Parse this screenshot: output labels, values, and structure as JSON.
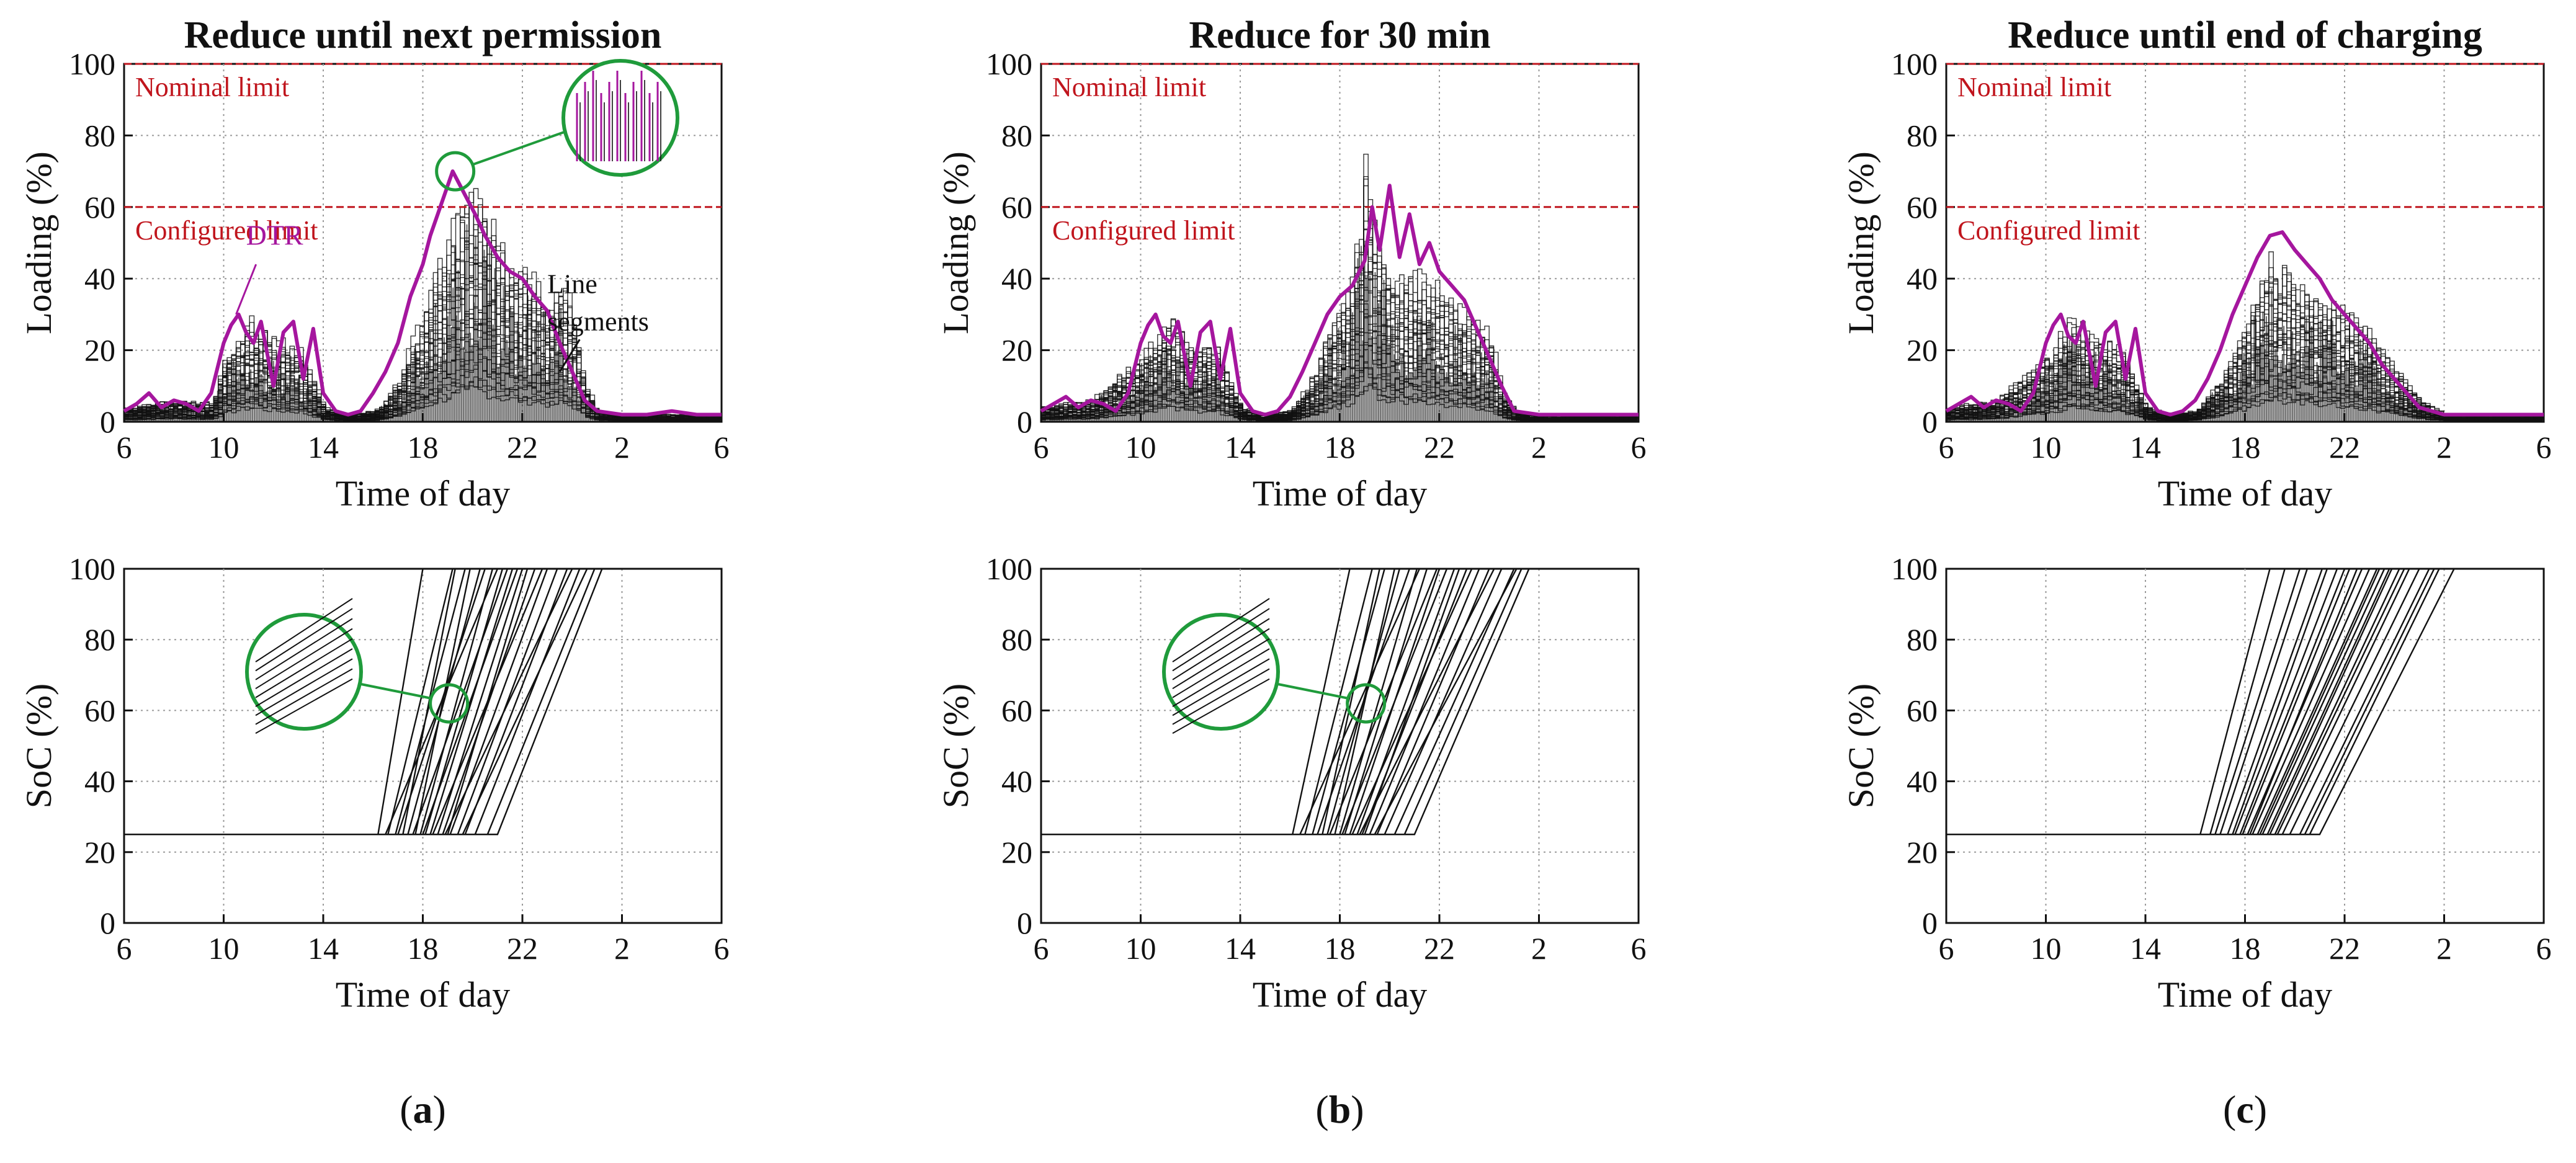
{
  "figure": {
    "panel_labels": [
      "a",
      "b",
      "c"
    ],
    "colors": {
      "dtr": "#a5169e",
      "limit": "#c0151d",
      "segments": "#111111",
      "zoom": "#1f9b3b",
      "grid": "#9a9a9a"
    }
  },
  "chart_data": [
    {
      "id": "a-loading",
      "type": "line",
      "title": "Reduce until next permission",
      "xlabel": "Time of day",
      "ylabel": "Loading (%)",
      "x_ticks": [
        "6",
        "10",
        "14",
        "18",
        "22",
        "2",
        "6"
      ],
      "y_ticks": [
        "0",
        "20",
        "40",
        "60",
        "80",
        "100"
      ],
      "ylim": [
        0,
        100
      ],
      "xlim": [
        6,
        30
      ],
      "reference_lines": [
        {
          "label": "Nominal limit",
          "value": 100
        },
        {
          "label": "Configured limit",
          "value": 60
        }
      ],
      "annotations": {
        "dtr_label": "DTR",
        "segments_label_line1": "Line",
        "segments_label_line2": "segments"
      },
      "series": [
        {
          "name": "DTR",
          "x": [
            6,
            6.5,
            7,
            7.5,
            8,
            8.5,
            9,
            9.5,
            10,
            10.3,
            10.6,
            10.9,
            11.2,
            11.5,
            12,
            12.4,
            12.8,
            13.2,
            13.6,
            14,
            14.5,
            15,
            15.5,
            16,
            16.5,
            17,
            17.5,
            18,
            18.3,
            18.6,
            18.9,
            19.2,
            19.5,
            19.8,
            20.1,
            20.5,
            21,
            21.5,
            22,
            22.5,
            23,
            23.5,
            24,
            24.5,
            25,
            26,
            27,
            28,
            29,
            30
          ],
          "y": [
            3,
            5,
            8,
            4,
            6,
            5,
            3,
            8,
            22,
            27,
            30,
            25,
            22,
            28,
            10,
            25,
            28,
            12,
            26,
            8,
            3,
            2,
            3,
            8,
            14,
            22,
            35,
            44,
            52,
            58,
            64,
            70,
            66,
            62,
            58,
            52,
            46,
            42,
            40,
            35,
            31,
            22,
            14,
            6,
            3,
            2,
            2,
            3,
            2,
            2
          ]
        },
        {
          "name": "Line segments (upper envelope)",
          "x": [
            6,
            8,
            9.5,
            10,
            11,
            12,
            13,
            14,
            15,
            16,
            16.5,
            17,
            17.5,
            18,
            18.5,
            19,
            19.5,
            20,
            20.5,
            21,
            22,
            22.5,
            23,
            23.5,
            24,
            24.5,
            25,
            26,
            28,
            30
          ],
          "y": [
            4,
            6,
            5,
            18,
            28,
            22,
            20,
            4,
            2,
            3,
            6,
            12,
            22,
            30,
            42,
            50,
            60,
            65,
            58,
            48,
            42,
            40,
            34,
            38,
            30,
            10,
            3,
            2,
            2,
            2
          ]
        }
      ]
    },
    {
      "id": "b-loading",
      "type": "line",
      "title": "Reduce for 30 min",
      "xlabel": "Time of day",
      "ylabel": "Loading (%)",
      "x_ticks": [
        "6",
        "10",
        "14",
        "18",
        "22",
        "2",
        "6"
      ],
      "y_ticks": [
        "0",
        "20",
        "40",
        "60",
        "80",
        "100"
      ],
      "ylim": [
        0,
        100
      ],
      "xlim": [
        6,
        30
      ],
      "reference_lines": [
        {
          "label": "Nominal limit",
          "value": 100
        },
        {
          "label": "Configured limit",
          "value": 60
        }
      ],
      "series": [
        {
          "name": "DTR",
          "x": [
            6,
            6.5,
            7,
            7.5,
            8,
            8.5,
            9,
            9.5,
            10,
            10.3,
            10.6,
            10.9,
            11.2,
            11.5,
            12,
            12.4,
            12.8,
            13.2,
            13.6,
            14,
            14.5,
            15,
            15.5,
            16,
            16.5,
            17,
            17.5,
            18,
            18.5,
            19,
            19.3,
            19.6,
            20,
            20.4,
            20.8,
            21.2,
            21.6,
            22,
            22.5,
            23,
            23.5,
            24,
            24.5,
            25,
            26,
            28,
            30
          ],
          "y": [
            3,
            5,
            7,
            4,
            6,
            5,
            3,
            8,
            22,
            27,
            30,
            24,
            22,
            28,
            10,
            25,
            28,
            12,
            26,
            8,
            3,
            2,
            3,
            7,
            14,
            22,
            30,
            35,
            38,
            45,
            60,
            48,
            66,
            46,
            58,
            44,
            50,
            42,
            38,
            34,
            26,
            18,
            10,
            3,
            2,
            2,
            2
          ]
        },
        {
          "name": "Line segments (upper envelope)",
          "x": [
            6,
            8,
            10,
            11,
            12,
            13,
            14,
            15,
            16,
            17,
            17.5,
            18,
            18.5,
            19,
            19.5,
            20,
            21,
            22,
            23,
            24,
            24.5,
            25,
            26,
            30
          ],
          "y": [
            4,
            6,
            18,
            28,
            22,
            20,
            4,
            2,
            3,
            14,
            26,
            32,
            40,
            72,
            48,
            42,
            40,
            36,
            30,
            24,
            8,
            3,
            2,
            2
          ]
        }
      ]
    },
    {
      "id": "c-loading",
      "type": "line",
      "title": "Reduce until end of charging",
      "xlabel": "Time of day",
      "ylabel": "Loading (%)",
      "x_ticks": [
        "6",
        "10",
        "14",
        "18",
        "22",
        "2",
        "6"
      ],
      "y_ticks": [
        "0",
        "20",
        "40",
        "60",
        "80",
        "100"
      ],
      "ylim": [
        0,
        100
      ],
      "xlim": [
        6,
        30
      ],
      "reference_lines": [
        {
          "label": "Nominal limit",
          "value": 100
        },
        {
          "label": "Configured limit",
          "value": 60
        }
      ],
      "series": [
        {
          "name": "DTR",
          "x": [
            6,
            6.5,
            7,
            7.5,
            8,
            8.5,
            9,
            9.5,
            10,
            10.3,
            10.6,
            10.9,
            11.2,
            11.5,
            12,
            12.4,
            12.8,
            13.2,
            13.6,
            14,
            14.5,
            15,
            15.5,
            16,
            16.5,
            17,
            17.5,
            18,
            18.5,
            19,
            19.5,
            20,
            20.5,
            21,
            21.5,
            22,
            22.5,
            23,
            23.5,
            24,
            24.5,
            25,
            26,
            28,
            30
          ],
          "y": [
            3,
            5,
            7,
            4,
            6,
            5,
            3,
            8,
            22,
            27,
            30,
            24,
            22,
            28,
            10,
            25,
            28,
            12,
            26,
            8,
            3,
            2,
            3,
            6,
            12,
            20,
            30,
            38,
            46,
            52,
            53,
            48,
            44,
            40,
            34,
            30,
            26,
            22,
            16,
            12,
            8,
            4,
            2,
            2,
            2
          ]
        },
        {
          "name": "Line segments (upper envelope)",
          "x": [
            6,
            8,
            10,
            11,
            12,
            13,
            14,
            15,
            16,
            17,
            17.5,
            18,
            18.5,
            19,
            19.5,
            20,
            21,
            22,
            23,
            24,
            25,
            26,
            30
          ],
          "y": [
            4,
            6,
            18,
            28,
            22,
            20,
            4,
            2,
            3,
            12,
            20,
            28,
            38,
            44,
            42,
            40,
            34,
            30,
            24,
            14,
            6,
            2,
            2
          ]
        }
      ]
    },
    {
      "id": "a-soc",
      "type": "line",
      "xlabel": "Time of day",
      "ylabel": "SoC (%)",
      "x_ticks": [
        "6",
        "10",
        "14",
        "18",
        "22",
        "2",
        "6"
      ],
      "y_ticks": [
        "0",
        "20",
        "40",
        "60",
        "80",
        "100"
      ],
      "ylim": [
        0,
        100
      ],
      "xlim": [
        6,
        30
      ],
      "soc_initial": 25,
      "soc_final": 100,
      "vehicles_start_end": [
        [
          16.2,
          18.0
        ],
        [
          16.6,
          19.2
        ],
        [
          16.9,
          19.7
        ],
        [
          17.2,
          19.3
        ],
        [
          17.4,
          20.3
        ],
        [
          17.7,
          19.9
        ],
        [
          17.9,
          20.8
        ],
        [
          18.1,
          21.2
        ],
        [
          18.3,
          21.6
        ],
        [
          18.6,
          22.0
        ],
        [
          18.8,
          22.5
        ],
        [
          19.1,
          23.0
        ],
        [
          19.4,
          23.4
        ],
        [
          19.7,
          23.8
        ],
        [
          20.1,
          24.3
        ],
        [
          20.6,
          24.9
        ],
        [
          21.0,
          25.2
        ],
        [
          17.0,
          20.5
        ],
        [
          18.0,
          21.8
        ],
        [
          18.4,
          22.8
        ],
        [
          19.0,
          22.2
        ],
        [
          16.5,
          21.0
        ],
        [
          17.6,
          21.4
        ],
        [
          18.9,
          24.0
        ],
        [
          19.6,
          24.6
        ]
      ]
    },
    {
      "id": "b-soc",
      "type": "line",
      "xlabel": "Time of day",
      "ylabel": "SoC (%)",
      "x_ticks": [
        "6",
        "10",
        "14",
        "18",
        "22",
        "2",
        "6"
      ],
      "y_ticks": [
        "0",
        "20",
        "40",
        "60",
        "80",
        "100"
      ],
      "ylim": [
        0,
        100
      ],
      "xlim": [
        6,
        30
      ],
      "soc_initial": 25,
      "soc_final": 100,
      "vehicles_start_end": [
        [
          16.1,
          18.4
        ],
        [
          16.6,
          19.3
        ],
        [
          16.9,
          19.8
        ],
        [
          17.3,
          19.6
        ],
        [
          17.5,
          20.4
        ],
        [
          17.8,
          20.2
        ],
        [
          18.0,
          21.1
        ],
        [
          18.2,
          21.5
        ],
        [
          18.4,
          22.0
        ],
        [
          18.7,
          22.6
        ],
        [
          18.9,
          23.1
        ],
        [
          19.2,
          23.6
        ],
        [
          19.5,
          24.0
        ],
        [
          19.8,
          24.5
        ],
        [
          20.2,
          25.0
        ],
        [
          20.6,
          25.3
        ],
        [
          21.0,
          25.6
        ],
        [
          17.1,
          20.8
        ],
        [
          18.1,
          22.3
        ],
        [
          18.5,
          23.3
        ],
        [
          19.0,
          22.8
        ],
        [
          16.4,
          21.2
        ],
        [
          17.6,
          21.9
        ],
        [
          18.8,
          24.2
        ],
        [
          19.4,
          25.1
        ]
      ]
    },
    {
      "id": "c-soc",
      "type": "line",
      "xlabel": "Time of day",
      "ylabel": "SoC (%)",
      "x_ticks": [
        "6",
        "10",
        "14",
        "18",
        "22",
        "2",
        "6"
      ],
      "y_ticks": [
        "0",
        "20",
        "40",
        "60",
        "80",
        "100"
      ],
      "ylim": [
        0,
        100
      ],
      "xlim": [
        6,
        30
      ],
      "soc_initial": 25,
      "soc_final": 100,
      "vehicles_start_end": [
        [
          16.2,
          19.0
        ],
        [
          16.6,
          19.6
        ],
        [
          17.0,
          20.5
        ],
        [
          17.3,
          21.1
        ],
        [
          17.6,
          21.7
        ],
        [
          17.9,
          22.2
        ],
        [
          18.1,
          22.7
        ],
        [
          18.3,
          23.0
        ],
        [
          18.5,
          23.3
        ],
        [
          18.7,
          23.6
        ],
        [
          18.9,
          23.8
        ],
        [
          19.2,
          24.2
        ],
        [
          19.5,
          24.6
        ],
        [
          19.8,
          25.0
        ],
        [
          20.2,
          25.4
        ],
        [
          20.6,
          25.8
        ],
        [
          21.0,
          26.4
        ],
        [
          17.5,
          21.3
        ],
        [
          18.2,
          22.5
        ],
        [
          18.6,
          23.4
        ],
        [
          19.0,
          23.9
        ],
        [
          16.8,
          20.2
        ],
        [
          17.8,
          22.0
        ],
        [
          19.3,
          24.4
        ],
        [
          20.4,
          25.6
        ]
      ]
    }
  ]
}
